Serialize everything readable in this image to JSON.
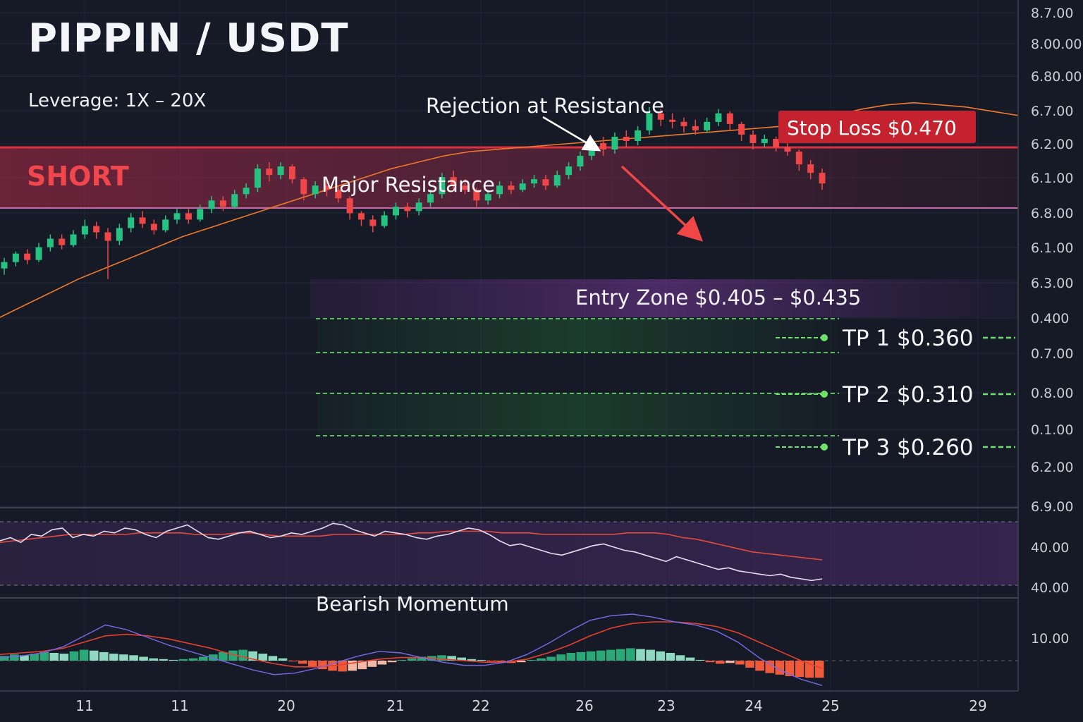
{
  "header": {
    "title": "PIPPIN / USDT",
    "leverage": "Leverage: 1X – 20X",
    "direction": "SHORT"
  },
  "colors": {
    "background": "#151a26",
    "bull": "#26c281",
    "bear": "#ef4747",
    "resistance": "#d93a4a",
    "entry": "#6c3a86",
    "tp": "#6ee36a",
    "ma": "#f07a2a",
    "rsi": "#e9dcef",
    "signal": "#e64a3a"
  },
  "chart_data": {
    "type": "candlestick",
    "annotations": {
      "resistance": "Major Resistance",
      "rejection": "Rejection at Resistance",
      "stop_loss": "Stop Loss $0.470",
      "entry": "Entry Zone $0.405 – $0.435",
      "momentum": "Bearish Momentum"
    },
    "take_profits": [
      {
        "label": "TP 1 $0.360",
        "price": 0.36
      },
      {
        "label": "TP 2 $0.310",
        "price": 0.31
      },
      {
        "label": "TP 3 $0.260",
        "price": 0.26
      }
    ],
    "levels": {
      "stop_loss": 0.47,
      "resistance_band": [
        0.455,
        0.47
      ],
      "entry_band": [
        0.405,
        0.435
      ]
    },
    "y_tick_labels": [
      "8.7.00",
      "8.00.00",
      "6.80.00",
      "6.7.00",
      "6.2.00",
      "6.1.00",
      "6.8.00",
      "6.1.00",
      "6.3.00",
      "0.400",
      "0.7.00",
      "0.8.00",
      "0.1.00",
      "6.2.00",
      "6.9.00",
      "40.00",
      "40.00",
      "10.00"
    ],
    "x_tick_labels": [
      "11",
      "11",
      "20",
      "21",
      "22",
      "26",
      "23",
      "24",
      "25",
      "29"
    ],
    "candles": [
      [
        0.423,
        0.426,
        0.42,
        0.428
      ],
      [
        0.426,
        0.43,
        0.424,
        0.431
      ],
      [
        0.43,
        0.427,
        0.425,
        0.432
      ],
      [
        0.427,
        0.433,
        0.426,
        0.435
      ],
      [
        0.433,
        0.437,
        0.431,
        0.439
      ],
      [
        0.437,
        0.434,
        0.432,
        0.439
      ],
      [
        0.434,
        0.439,
        0.433,
        0.441
      ],
      [
        0.439,
        0.443,
        0.437,
        0.446
      ],
      [
        0.443,
        0.44,
        0.437,
        0.445
      ],
      [
        0.44,
        0.436,
        0.418,
        0.442
      ],
      [
        0.436,
        0.442,
        0.434,
        0.444
      ],
      [
        0.442,
        0.447,
        0.44,
        0.449
      ],
      [
        0.447,
        0.444,
        0.442,
        0.45
      ],
      [
        0.444,
        0.441,
        0.439,
        0.446
      ],
      [
        0.441,
        0.446,
        0.44,
        0.448
      ],
      [
        0.446,
        0.449,
        0.444,
        0.451
      ],
      [
        0.449,
        0.446,
        0.444,
        0.451
      ],
      [
        0.446,
        0.451,
        0.445,
        0.453
      ],
      [
        0.451,
        0.455,
        0.449,
        0.457
      ],
      [
        0.455,
        0.452,
        0.45,
        0.457
      ],
      [
        0.452,
        0.458,
        0.451,
        0.46
      ],
      [
        0.458,
        0.461,
        0.456,
        0.463
      ],
      [
        0.461,
        0.47,
        0.459,
        0.472
      ],
      [
        0.47,
        0.467,
        0.464,
        0.473
      ],
      [
        0.467,
        0.471,
        0.465,
        0.473
      ],
      [
        0.471,
        0.465,
        0.463,
        0.472
      ],
      [
        0.465,
        0.458,
        0.455,
        0.466
      ],
      [
        0.458,
        0.462,
        0.456,
        0.464
      ],
      [
        0.462,
        0.46,
        0.457,
        0.464
      ],
      [
        0.46,
        0.456,
        0.454,
        0.462
      ],
      [
        0.456,
        0.449,
        0.446,
        0.457
      ],
      [
        0.449,
        0.446,
        0.443,
        0.45
      ],
      [
        0.446,
        0.443,
        0.44,
        0.448
      ],
      [
        0.443,
        0.448,
        0.442,
        0.45
      ],
      [
        0.448,
        0.452,
        0.446,
        0.454
      ],
      [
        0.452,
        0.45,
        0.447,
        0.454
      ],
      [
        0.45,
        0.454,
        0.448,
        0.456
      ],
      [
        0.454,
        0.458,
        0.452,
        0.46
      ],
      [
        0.458,
        0.466,
        0.456,
        0.468
      ],
      [
        0.466,
        0.462,
        0.46,
        0.469
      ],
      [
        0.462,
        0.46,
        0.458,
        0.465
      ],
      [
        0.46,
        0.455,
        0.452,
        0.461
      ],
      [
        0.455,
        0.458,
        0.453,
        0.46
      ],
      [
        0.458,
        0.462,
        0.456,
        0.464
      ],
      [
        0.462,
        0.46,
        0.458,
        0.464
      ],
      [
        0.46,
        0.463,
        0.459,
        0.465
      ],
      [
        0.463,
        0.465,
        0.461,
        0.467
      ],
      [
        0.465,
        0.462,
        0.46,
        0.467
      ],
      [
        0.462,
        0.467,
        0.461,
        0.469
      ],
      [
        0.467,
        0.471,
        0.465,
        0.473
      ],
      [
        0.471,
        0.476,
        0.469,
        0.478
      ],
      [
        0.476,
        0.482,
        0.474,
        0.484
      ],
      [
        0.482,
        0.479,
        0.476,
        0.485
      ],
      [
        0.479,
        0.485,
        0.477,
        0.487
      ],
      [
        0.485,
        0.483,
        0.48,
        0.488
      ],
      [
        0.483,
        0.488,
        0.481,
        0.49
      ],
      [
        0.488,
        0.496,
        0.486,
        0.499
      ],
      [
        0.496,
        0.493,
        0.49,
        0.498
      ],
      [
        0.493,
        0.492,
        0.489,
        0.496
      ],
      [
        0.492,
        0.49,
        0.487,
        0.494
      ],
      [
        0.49,
        0.488,
        0.486,
        0.493
      ],
      [
        0.488,
        0.492,
        0.487,
        0.494
      ],
      [
        0.492,
        0.496,
        0.49,
        0.498
      ],
      [
        0.496,
        0.491,
        0.488,
        0.497
      ],
      [
        0.491,
        0.486,
        0.483,
        0.492
      ],
      [
        0.486,
        0.482,
        0.479,
        0.488
      ],
      [
        0.482,
        0.484,
        0.48,
        0.486
      ],
      [
        0.484,
        0.48,
        0.478,
        0.485
      ],
      [
        0.48,
        0.478,
        0.476,
        0.482
      ],
      [
        0.478,
        0.472,
        0.469,
        0.479
      ],
      [
        0.472,
        0.468,
        0.465,
        0.474
      ],
      [
        0.468,
        0.463,
        0.46,
        0.47
      ]
    ],
    "ma": [
      0.4,
      0.406,
      0.412,
      0.418,
      0.423,
      0.428,
      0.433,
      0.438,
      0.442,
      0.446,
      0.45,
      0.454,
      0.458,
      0.462,
      0.466,
      0.47,
      0.473,
      0.476,
      0.478,
      0.479,
      0.48,
      0.481,
      0.482,
      0.483,
      0.484,
      0.485,
      0.486,
      0.487,
      0.488,
      0.489,
      0.49,
      0.492,
      0.495,
      0.498,
      0.5,
      0.501,
      0.5,
      0.499,
      0.497,
      0.495
    ],
    "rsi": [
      58,
      60,
      57,
      62,
      61,
      65,
      66,
      60,
      62,
      61,
      64,
      63,
      66,
      65,
      62,
      60,
      64,
      66,
      68,
      64,
      60,
      59,
      61,
      63,
      64,
      62,
      60,
      61,
      63,
      62,
      64,
      66,
      69,
      68,
      65,
      63,
      61,
      64,
      63,
      62,
      60,
      59,
      61,
      62,
      64,
      66,
      65,
      62,
      58,
      55,
      56,
      54,
      52,
      50,
      49,
      51,
      53,
      55,
      56,
      54,
      52,
      51,
      49,
      47,
      45,
      48,
      46,
      44,
      42,
      40,
      41,
      39,
      38,
      37,
      36,
      37,
      35,
      34,
      33,
      34
    ],
    "rsi_signal": [
      57,
      58,
      59,
      60,
      61,
      62,
      62,
      62,
      62,
      62,
      63,
      63,
      63,
      63,
      62,
      62,
      62,
      63,
      63,
      62,
      61,
      61,
      61,
      61,
      62,
      62,
      62,
      62,
      62,
      62,
      63,
      63,
      64,
      64,
      64,
      64,
      63,
      63,
      63,
      62,
      62,
      62,
      62,
      62,
      62,
      63,
      63,
      63,
      62,
      60,
      59,
      57,
      55,
      53,
      51,
      50,
      49,
      48,
      47,
      46
    ],
    "macd": [
      0.2,
      0.3,
      0.5,
      0.9,
      1.6,
      2.3,
      2.0,
      1.5,
      1.0,
      0.6,
      0.2,
      -0.2,
      -0.6,
      -0.9,
      -0.8,
      -0.5,
      -0.1,
      0.3,
      0.6,
      0.5,
      0.2,
      -0.1,
      -0.3,
      -0.3,
      -0.1,
      0.4,
      1.1,
      1.9,
      2.6,
      2.9,
      3.0,
      2.8,
      2.5,
      2.3,
      1.9,
      1.2,
      0.2,
      -0.6,
      -1.2,
      -1.6
    ],
    "macd_signal": [
      0.4,
      0.5,
      0.6,
      0.8,
      1.2,
      1.6,
      1.7,
      1.6,
      1.4,
      1.1,
      0.8,
      0.4,
      0.1,
      -0.2,
      -0.4,
      -0.4,
      -0.3,
      -0.1,
      0.1,
      0.2,
      0.2,
      0.1,
      0.0,
      -0.1,
      -0.1,
      0.1,
      0.5,
      1.0,
      1.6,
      2.1,
      2.4,
      2.5,
      2.5,
      2.4,
      2.2,
      1.8,
      1.2,
      0.6,
      0.0,
      -0.5
    ],
    "histogram": [
      0.6,
      0.8,
      0.7,
      0.9,
      1.1,
      1.0,
      0.9,
      1.2,
      1.4,
      1.3,
      1.1,
      0.9,
      0.8,
      0.7,
      0.5,
      0.3,
      0.2,
      0.1,
      0.2,
      0.3,
      0.5,
      0.8,
      1.1,
      1.3,
      1.4,
      1.2,
      0.9,
      0.6,
      0.3,
      -0.1,
      -0.4,
      -0.8,
      -1.1,
      -1.3,
      -1.4,
      -1.3,
      -1.1,
      -0.8,
      -0.5,
      -0.2,
      0.1,
      0.3,
      0.5,
      0.6,
      0.7,
      0.6,
      0.4,
      0.2,
      0.1,
      -0.1,
      -0.2,
      -0.3,
      -0.2,
      0.1,
      0.3,
      0.5,
      0.8,
      1.0,
      1.1,
      1.2,
      1.3,
      1.4,
      1.5,
      1.6,
      1.5,
      1.4,
      1.2,
      1.0,
      0.7,
      0.4,
      0.1,
      -0.2,
      -0.4,
      -0.3,
      -0.5,
      -0.9,
      -1.3,
      -1.6,
      -1.8,
      -2.0,
      -2.1,
      -2.2,
      -2.2
    ]
  }
}
